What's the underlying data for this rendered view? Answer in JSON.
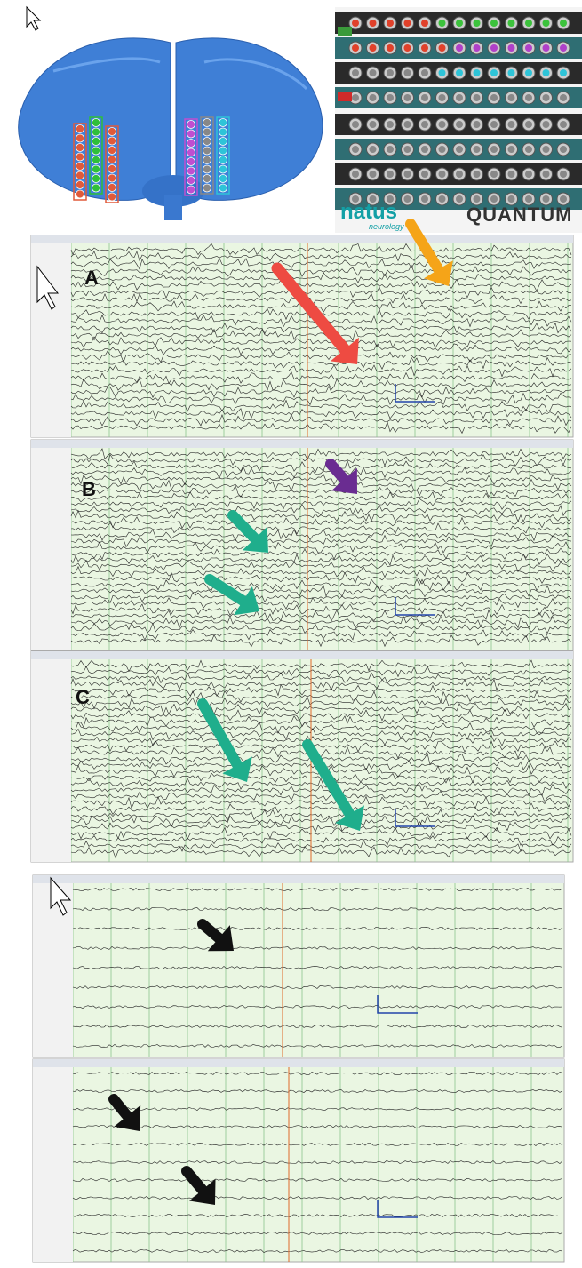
{
  "device": {
    "brand": "natus",
    "sub": "neurology",
    "model": "QUANTUM"
  },
  "panels": [
    {
      "label": "A"
    },
    {
      "label": "B"
    },
    {
      "label": "C"
    }
  ]
}
